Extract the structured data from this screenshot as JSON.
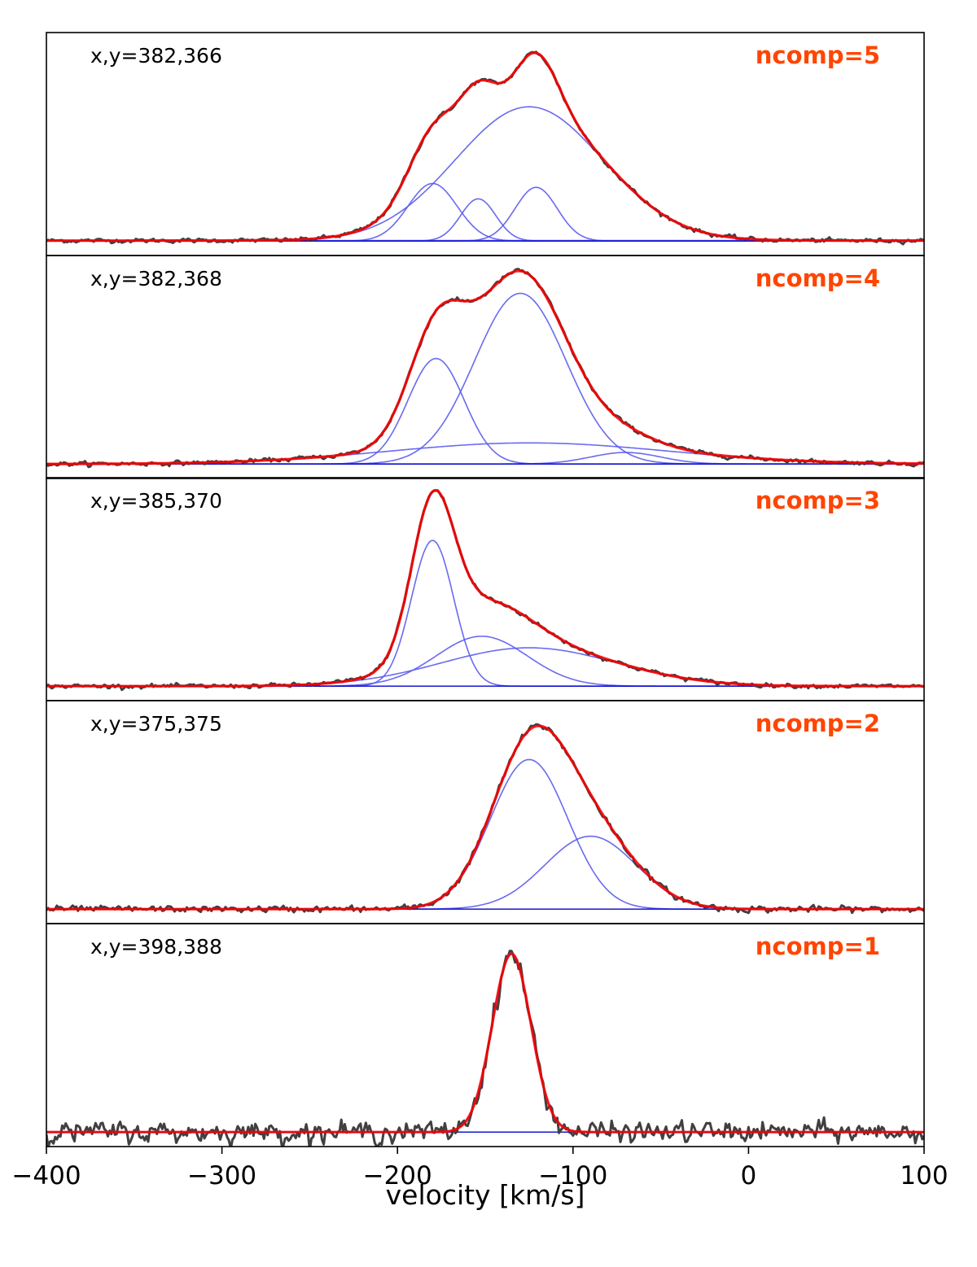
{
  "chart_data": [
    {
      "type": "line",
      "coord_label": "x,y=382,366",
      "ncomp_label": "ncomp=5",
      "noise": 0.008,
      "fit": {
        "amplitude": 1.0
      },
      "components": [
        {
          "amp": 0.3,
          "center": -180,
          "sigma": 14
        },
        {
          "amp": 0.22,
          "center": -154,
          "sigma": 10
        },
        {
          "amp": 0.28,
          "center": -121,
          "sigma": 12
        },
        {
          "amp": 0.7,
          "center": -125,
          "sigma": 42
        },
        {
          "amp": 0.003,
          "center": -125,
          "sigma": 300
        }
      ]
    },
    {
      "type": "line",
      "coord_label": "x,y=382,368",
      "ncomp_label": "ncomp=4",
      "noise": 0.008,
      "components": [
        {
          "amp": 0.55,
          "center": -178,
          "sigma": 16
        },
        {
          "amp": 0.89,
          "center": -130,
          "sigma": 26
        },
        {
          "amp": 0.11,
          "center": -125,
          "sigma": 80
        },
        {
          "amp": 0.06,
          "center": -70,
          "sigma": 20
        }
      ]
    },
    {
      "type": "line",
      "coord_label": "x,y=385,370",
      "ncomp_label": "ncomp=3",
      "noise": 0.008,
      "components": [
        {
          "amp": 0.76,
          "center": -180,
          "sigma": 12
        },
        {
          "amp": 0.26,
          "center": -152,
          "sigma": 26
        },
        {
          "amp": 0.2,
          "center": -125,
          "sigma": 50
        }
      ]
    },
    {
      "type": "line",
      "coord_label": "x,y=375,375",
      "ncomp_label": "ncomp=2",
      "noise": 0.012,
      "components": [
        {
          "amp": 0.78,
          "center": -125,
          "sigma": 22
        },
        {
          "amp": 0.38,
          "center": -90,
          "sigma": 26
        }
      ]
    },
    {
      "type": "line",
      "coord_label": "x,y=398,388",
      "ncomp_label": "ncomp=1",
      "noise": 0.04,
      "components": [
        {
          "amp": 0.93,
          "center": -135,
          "sigma": 11
        }
      ]
    }
  ],
  "xaxis": {
    "label": "velocity [km/s]",
    "xlim": [
      -400,
      100
    ],
    "ticks": [
      -400,
      -300,
      -200,
      -100,
      0,
      100
    ],
    "tick_labels": [
      "−400",
      "−300",
      "−200",
      "−100",
      "0",
      "100"
    ]
  },
  "colors": {
    "data": "#404040",
    "fit": "#ff0000",
    "component": "#5a5aee",
    "baseline": "#0000cc",
    "ncomp_label": "#ff4500"
  }
}
